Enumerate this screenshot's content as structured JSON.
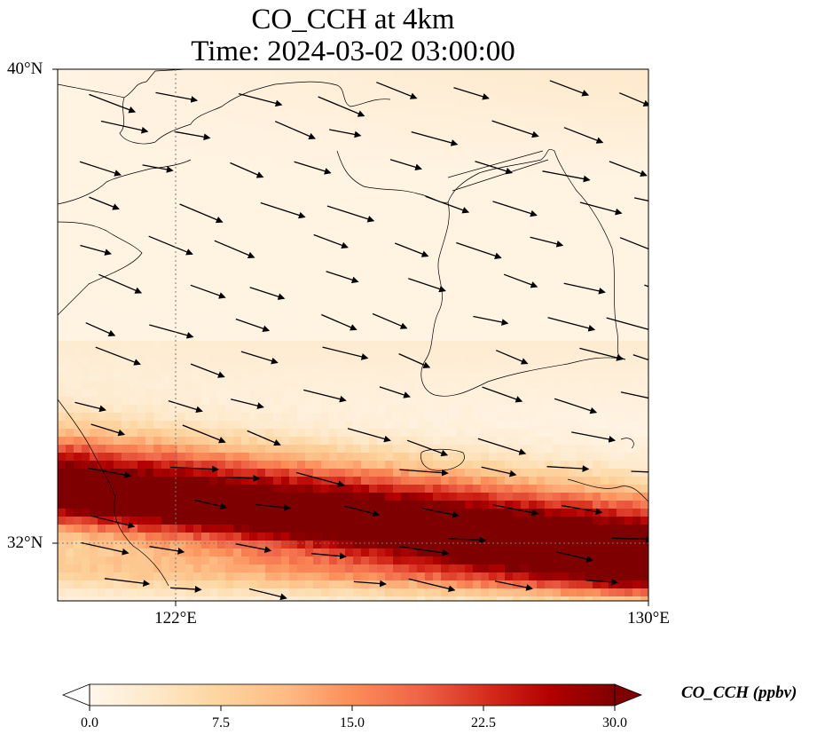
{
  "title_line1": "CO_CCH at 4km",
  "title_line2": "Time: 2024-03-02 03:00:00",
  "map": {
    "extent": {
      "lon_min": 119.0,
      "lon_max": 130.0,
      "lat_min": 30.9,
      "lat_max": 40.0
    },
    "lat_gridline": 32,
    "lon_gridline": 122,
    "lat_ticks": [
      "40°N",
      "32°N"
    ],
    "lon_ticks": [
      "122°E",
      "130°E"
    ]
  },
  "colorbar": {
    "label": "CO_CCH (ppbv)",
    "min": 0.0,
    "max": 30.0,
    "ticks": [
      "0.0",
      "7.5",
      "15.0",
      "22.5",
      "30.0"
    ],
    "colormap": "OrRd",
    "colors": [
      "#fff7ec",
      "#fee8c8",
      "#fdd49e",
      "#fdbb84",
      "#fc8d59",
      "#ef6548",
      "#d7301f",
      "#b30000",
      "#7f0000"
    ],
    "extend": "both"
  },
  "field_description": {
    "background_ppbv": 1.0,
    "plume_core_ppbv": 30.0,
    "plume_axis": "west-to-east band tilting slightly downward across southern part of domain"
  },
  "wind_vectors_direction": "east-southeast"
}
